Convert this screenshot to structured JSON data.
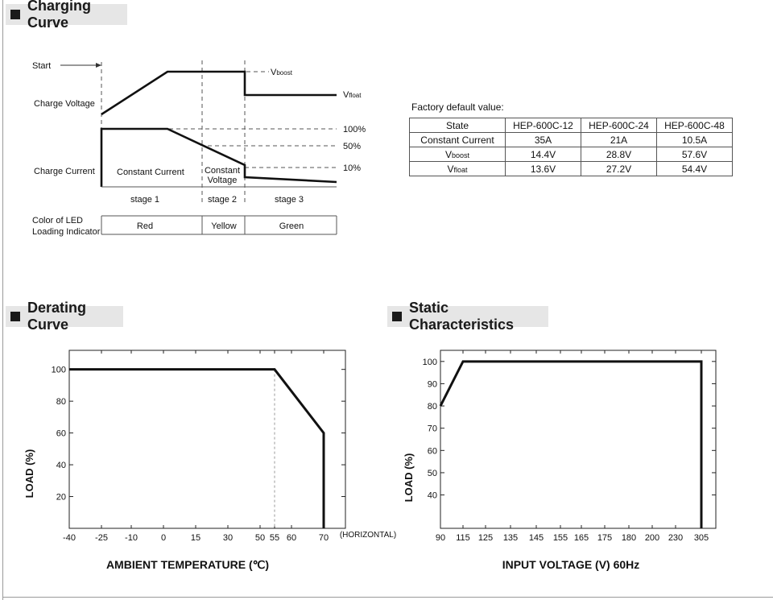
{
  "sections": {
    "charging": "Charging Curve",
    "derating": "Derating Curve",
    "static": "Static Characteristics"
  },
  "charging_curve": {
    "start": "Start",
    "charge_voltage": "Charge Voltage",
    "charge_current": "Charge Current",
    "vboost_v": "V",
    "vboost_sub": "boost",
    "vfloat_v": "V",
    "vfloat_sub": "float",
    "pct_100": "100%",
    "pct_50": "50%",
    "pct_10": "10%",
    "constant_current": "Constant Current",
    "constant_voltage_1": "Constant",
    "constant_voltage_2": "Voltage",
    "stage1": "stage 1",
    "stage2": "stage 2",
    "stage3": "stage 3",
    "led_label_1": "Color of LED",
    "led_label_2": "Loading Indicator",
    "led_red": "Red",
    "led_yellow": "Yellow",
    "led_green": "Green"
  },
  "factory": {
    "title": "Factory default value:",
    "header": [
      "State",
      "HEP-600C-12",
      "HEP-600C-24",
      "HEP-600C-48"
    ],
    "rows": [
      {
        "label": "Constant Current",
        "values": [
          "35A",
          "21A",
          "10.5A"
        ]
      },
      {
        "label_v": "V",
        "label_sub": "boost",
        "values": [
          "14.4V",
          "28.8V",
          "57.6V"
        ]
      },
      {
        "label_v": "V",
        "label_sub": "float",
        "values": [
          "13.6V",
          "27.2V",
          "54.4V"
        ]
      }
    ]
  },
  "chart_data": [
    {
      "type": "line",
      "title": "Derating Curve",
      "xlabel": "AMBIENT TEMPERATURE (℃)",
      "ylabel": "LOAD (%)",
      "x_ticks": [
        "-40",
        "-25",
        "-10",
        "0",
        "15",
        "30",
        "50",
        "55",
        "60",
        "70"
      ],
      "y_ticks": [
        "100",
        "80",
        "60",
        "40",
        "20"
      ],
      "x_note": "(HORIZONTAL)",
      "points": [
        {
          "x": "-40",
          "y": 100
        },
        {
          "x": "55",
          "y": 100
        },
        {
          "x": "70",
          "y": 60
        },
        {
          "x": "70",
          "y": 0
        }
      ],
      "ylim": [
        0,
        112
      ]
    },
    {
      "type": "line",
      "title": "Static Characteristics",
      "xlabel": "INPUT VOLTAGE (V) 60Hz",
      "ylabel": "LOAD (%)",
      "x_ticks": [
        "90",
        "115",
        "125",
        "135",
        "145",
        "155",
        "165",
        "175",
        "180",
        "200",
        "230",
        "305"
      ],
      "y_ticks": [
        "100",
        "90",
        "80",
        "70",
        "60",
        "50",
        "40"
      ],
      "points": [
        {
          "x": "90",
          "y": 80
        },
        {
          "x": "115",
          "y": 100
        },
        {
          "x": "305",
          "y": 100
        },
        {
          "x": "305",
          "y": 25
        }
      ],
      "ylim": [
        25,
        105
      ]
    }
  ]
}
